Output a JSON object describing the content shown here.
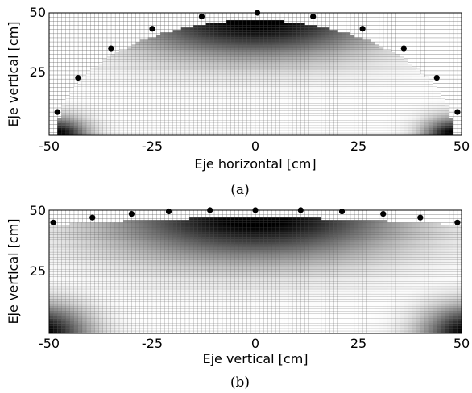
{
  "chart_data": [
    {
      "type": "heatmap",
      "panel": "a",
      "caption": "(a)",
      "xlabel": "Eje horizontal [cm]",
      "ylabel": "Eje vertical [cm]",
      "xlim": [
        -50,
        50
      ],
      "ylim": [
        0,
        50
      ],
      "x_ticks": [
        "-50",
        "-25",
        "0",
        "25",
        "50"
      ],
      "y_ticks": [
        "25",
        "50"
      ],
      "grid_spacing_cm": 1,
      "grid": true,
      "region": {
        "shape": "half-ellipse",
        "center": [
          0,
          0
        ],
        "semi_axis_x": 48,
        "semi_axis_y": 47,
        "bottom_cut_y": 0
      },
      "shading": {
        "min_color": "#000000",
        "max_color": "#ffffff",
        "dark_zones": [
          "top-center",
          "bottom-left",
          "bottom-right"
        ]
      },
      "electrodes": [
        {
          "x": -48,
          "y": 9.5
        },
        {
          "x": -43,
          "y": 23.5
        },
        {
          "x": -35,
          "y": 35.5
        },
        {
          "x": -25,
          "y": 43.5
        },
        {
          "x": -13,
          "y": 48.5
        },
        {
          "x": 0.5,
          "y": 50
        },
        {
          "x": 14,
          "y": 48.5
        },
        {
          "x": 26,
          "y": 43.5
        },
        {
          "x": 36,
          "y": 35.5
        },
        {
          "x": 44,
          "y": 23.5
        },
        {
          "x": 49,
          "y": 9.5
        }
      ],
      "electrode_color": "#000000"
    },
    {
      "type": "heatmap",
      "panel": "b",
      "caption": "(b)",
      "xlabel": "Eje vertical [cm]",
      "ylabel": "Eje vertical [cm]",
      "xlim": [
        -50,
        50
      ],
      "ylim": [
        0,
        50
      ],
      "x_ticks": [
        "-50",
        "-25",
        "0",
        "25",
        "50"
      ],
      "y_ticks": [
        "25",
        "50"
      ],
      "grid_spacing_cm": 1,
      "grid": true,
      "region": {
        "shape": "flattened-top",
        "top_y_center": 47,
        "top_y_edge": 44,
        "bottom_y": 0
      },
      "shading": {
        "min_color": "#000000",
        "max_color": "#ffffff",
        "dark_zones": [
          "top-center",
          "bottom-left",
          "bottom-right"
        ]
      },
      "electrodes": [
        {
          "x": -49,
          "y": 45
        },
        {
          "x": -39.5,
          "y": 47
        },
        {
          "x": -30,
          "y": 48.5
        },
        {
          "x": -21,
          "y": 49.5
        },
        {
          "x": -11,
          "y": 50
        },
        {
          "x": 0,
          "y": 50
        },
        {
          "x": 11,
          "y": 50
        },
        {
          "x": 21,
          "y": 49.5
        },
        {
          "x": 31,
          "y": 48.5
        },
        {
          "x": 40,
          "y": 47
        },
        {
          "x": 49,
          "y": 45
        }
      ],
      "electrode_color": "#000000"
    }
  ]
}
